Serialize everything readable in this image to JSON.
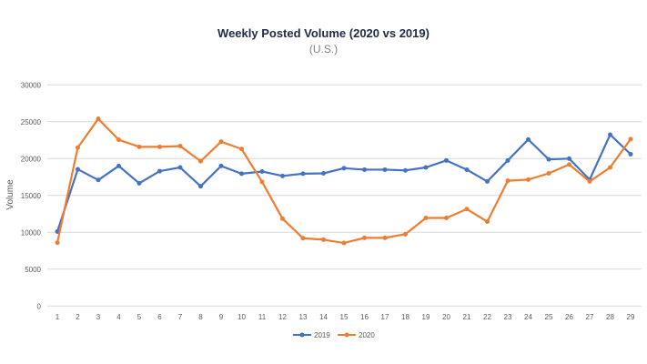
{
  "chart_data": {
    "type": "line",
    "title": "Weekly Posted Volume (2020 vs 2019)",
    "subtitle": "(U.S.)",
    "xlabel": "",
    "ylabel": "Volume",
    "x": [
      1,
      2,
      3,
      4,
      5,
      6,
      7,
      8,
      9,
      10,
      11,
      12,
      13,
      14,
      15,
      16,
      17,
      18,
      19,
      20,
      21,
      22,
      23,
      24,
      25,
      26,
      27,
      28,
      29
    ],
    "ylim": [
      0,
      30000
    ],
    "yticks": [
      0,
      5000,
      10000,
      15000,
      20000,
      25000,
      30000
    ],
    "grid": true,
    "legend_position": "bottom",
    "series": [
      {
        "name": "2019",
        "color": "#4472c4",
        "values": [
          10100,
          18550,
          17100,
          19000,
          16650,
          18300,
          18800,
          16250,
          19000,
          17950,
          18250,
          17650,
          17950,
          18000,
          18700,
          18500,
          18500,
          18400,
          18800,
          19750,
          18500,
          16900,
          19750,
          22600,
          19900,
          20000,
          17150,
          23250,
          20600
        ]
      },
      {
        "name": "2020",
        "color": "#ed7d31",
        "values": [
          8600,
          21500,
          25400,
          22550,
          21600,
          21600,
          21700,
          19650,
          22300,
          21300,
          16850,
          11850,
          9200,
          9000,
          8550,
          9250,
          9250,
          9750,
          11950,
          11950,
          13150,
          11450,
          17000,
          17150,
          18000,
          19200,
          16900,
          18800,
          22650
        ]
      }
    ]
  }
}
